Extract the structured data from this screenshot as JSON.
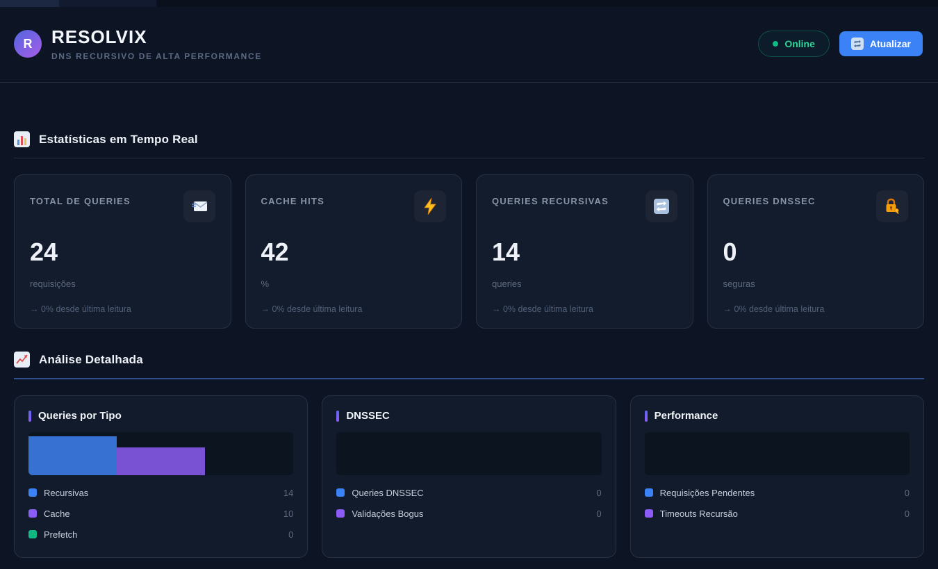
{
  "header": {
    "logo_letter": "R",
    "title": "RESOLVIX",
    "subtitle": "DNS RECURSIVO DE ALTA PERFORMANCE",
    "status": {
      "label": "Online",
      "icon": "green-dot-icon",
      "color": "#34d399"
    },
    "refresh_button": {
      "label": "Atualizar",
      "icon": "refresh-arrows-icon",
      "color": "#3b82f6"
    }
  },
  "sections": {
    "stats": {
      "title": "Estatísticas em Tempo Real",
      "icon": "bar-chart-icon"
    },
    "analysis": {
      "title": "Análise Detalhada",
      "icon": "chart-increasing-icon"
    }
  },
  "stat_cards": [
    {
      "title": "TOTAL DE QUERIES",
      "icon": "incoming-envelope-icon",
      "value": "24",
      "unit": "requisições",
      "delta": "→ 0% desde última leitura"
    },
    {
      "title": "CACHE HITS",
      "icon": "lightning-icon",
      "value": "42",
      "unit": "%",
      "delta": "→ 0% desde última leitura"
    },
    {
      "title": "QUERIES RECURSIVAS",
      "icon": "cycle-arrows-icon",
      "value": "14",
      "unit": "queries",
      "delta": "→ 0% desde última leitura"
    },
    {
      "title": "QUERIES DNSSEC",
      "icon": "locked-with-key-icon",
      "value": "0",
      "unit": "seguras",
      "delta": "→ 0% desde última leitura"
    }
  ],
  "charts": [
    {
      "title": "Queries por Tipo",
      "items": [
        {
          "label": "Recursivas",
          "value": 14,
          "color": "#3b82f6"
        },
        {
          "label": "Cache",
          "value": 10,
          "color": "#8b5cf6"
        },
        {
          "label": "Prefetch",
          "value": 0,
          "color": "#10b981"
        }
      ]
    },
    {
      "title": "DNSSEC",
      "items": [
        {
          "label": "Queries DNSSEC",
          "value": 0,
          "color": "#3b82f6"
        },
        {
          "label": "Validações Bogus",
          "value": 0,
          "color": "#8b5cf6"
        }
      ]
    },
    {
      "title": "Performance",
      "items": [
        {
          "label": "Requisições Pendentes",
          "value": 0,
          "color": "#3b82f6"
        },
        {
          "label": "Timeouts Recursão",
          "value": 0,
          "color": "#8b5cf6"
        }
      ]
    }
  ],
  "chart_data": [
    {
      "type": "bar",
      "title": "Queries por Tipo",
      "categories": [
        "Recursivas",
        "Cache",
        "Prefetch"
      ],
      "values": [
        14,
        10,
        0
      ],
      "colors": [
        "#3b82f6",
        "#8b5cf6",
        "#10b981"
      ],
      "xlabel": "",
      "ylabel": "",
      "ylim": [
        0,
        14
      ],
      "grid": false,
      "legend_position": "below"
    },
    {
      "type": "bar",
      "title": "DNSSEC",
      "categories": [
        "Queries DNSSEC",
        "Validações Bogus"
      ],
      "values": [
        0,
        0
      ],
      "colors": [
        "#3b82f6",
        "#8b5cf6"
      ],
      "xlabel": "",
      "ylabel": "",
      "ylim": [
        0,
        1
      ],
      "grid": false,
      "legend_position": "below"
    },
    {
      "type": "bar",
      "title": "Performance",
      "categories": [
        "Requisições Pendentes",
        "Timeouts Recursão"
      ],
      "values": [
        0,
        0
      ],
      "colors": [
        "#3b82f6",
        "#8b5cf6"
      ],
      "xlabel": "",
      "ylabel": "",
      "ylim": [
        0,
        1
      ],
      "grid": false,
      "legend_position": "below"
    }
  ],
  "colors": {
    "page_bg": "#0d1525",
    "card_bg": "#131c2c",
    "card_border": "#263144",
    "accent_blue": "#3b82f6",
    "accent_purple": "#8b5cf6",
    "accent_green": "#10b981",
    "online_green": "#34d399",
    "divider_blue": "#34508c"
  }
}
